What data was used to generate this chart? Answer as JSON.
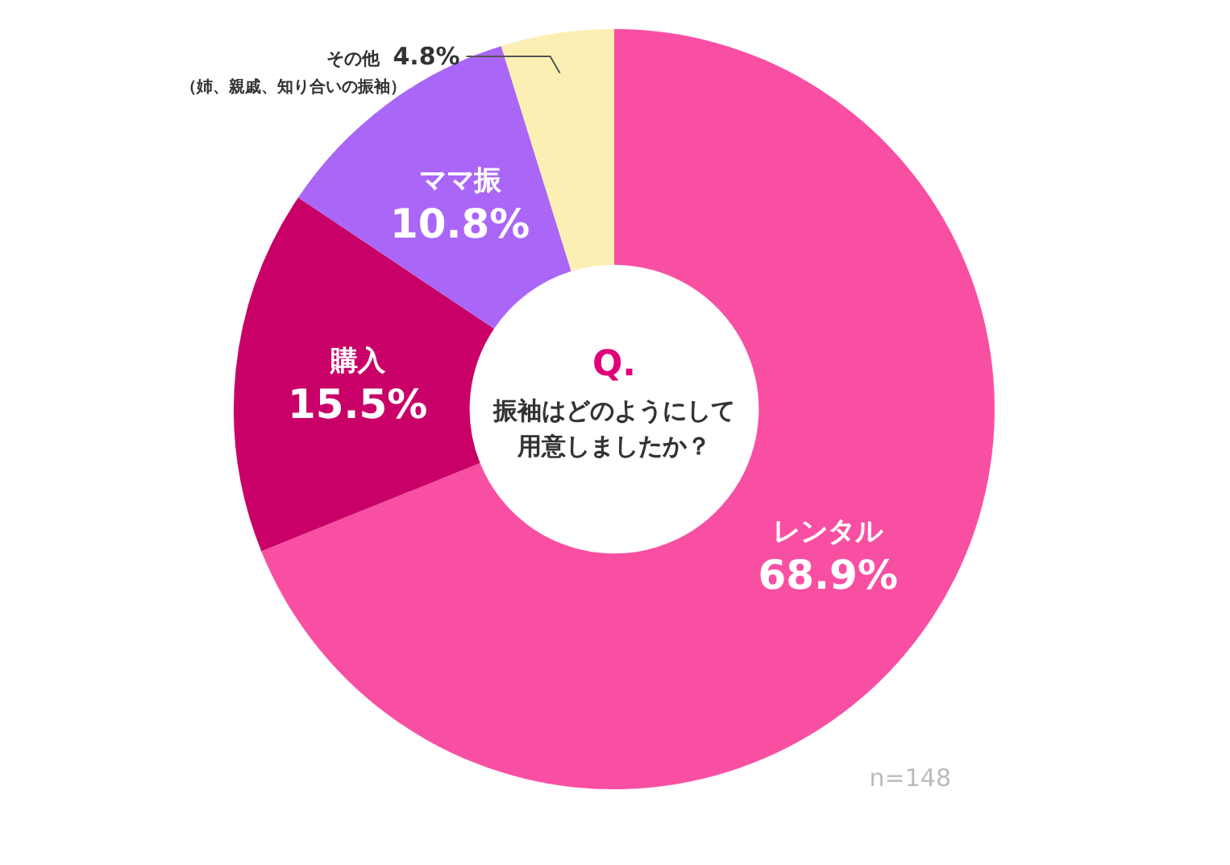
{
  "chart_data": {
    "type": "donut",
    "title": "Q.",
    "subtitle": "振袖はどのようにして用意しましたか？",
    "categories": [
      "レンタル",
      "購入",
      "ママ振",
      "その他"
    ],
    "values": [
      68.9,
      15.5,
      10.8,
      4.8
    ],
    "value_labels": [
      "68.9%",
      "15.5%",
      "10.8%",
      "4.8%"
    ],
    "colors": [
      "#f94fa3",
      "#c90068",
      "#aa66f6",
      "#fcefb4"
    ],
    "annotations": [
      "（姉、親戚、知り合いの振袖）",
      "n=148"
    ],
    "legend": false
  }
}
